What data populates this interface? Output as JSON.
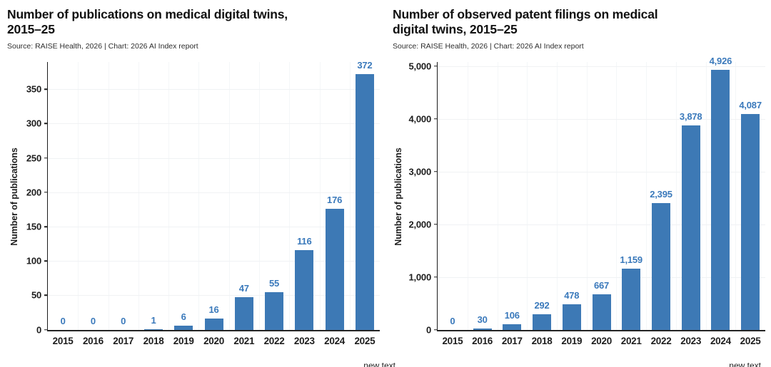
{
  "colors": {
    "bar": "#3D79B5",
    "value_label": "#3A79BB",
    "axis": "#1c1c1c",
    "tick_label": "#1d1d1d",
    "title": "#111111",
    "grid": "#f0f2f4",
    "background": "#ffffff"
  },
  "chart_data": [
    {
      "type": "bar",
      "title": "Number of publications on medical digital twins, 2015–25",
      "title_lines": [
        "Number of publications on medical digital twins,",
        "2015–25"
      ],
      "source": "Source: RAISE Health, 2026 | Chart: 2026 AI Index report",
      "ylabel": "Number of publications",
      "xlabel": "",
      "categories": [
        "2015",
        "2016",
        "2017",
        "2018",
        "2019",
        "2020",
        "2021",
        "2022",
        "2023",
        "2024",
        "2025"
      ],
      "values": [
        0,
        0,
        0,
        1,
        6,
        16,
        47,
        55,
        116,
        176,
        372
      ],
      "value_labels": [
        "0",
        "0",
        "0",
        "1",
        "6",
        "16",
        "47",
        "55",
        "116",
        "176",
        "372"
      ],
      "yticks": [
        0,
        50,
        100,
        150,
        200,
        250,
        300,
        350
      ],
      "ytick_labels": [
        "0",
        "50",
        "100",
        "150",
        "200",
        "250",
        "300",
        "350"
      ],
      "ylim": [
        0,
        390
      ],
      "grid": true,
      "legend": "none",
      "bar_color": "#3D79B5",
      "value_label_color": "#3A79BB",
      "cutoff_text": "new text"
    },
    {
      "type": "bar",
      "title": "Number of observed patent filings on medical digital twins, 2015–25",
      "title_lines": [
        "Number of observed patent filings on medical",
        "digital twins, 2015–25"
      ],
      "source": "Source: RAISE Health, 2026 | Chart: 2026 AI Index report",
      "ylabel": "Number of publications",
      "xlabel": "",
      "categories": [
        "2015",
        "2016",
        "2017",
        "2018",
        "2019",
        "2020",
        "2021",
        "2022",
        "2023",
        "2024",
        "2025"
      ],
      "values": [
        0,
        30,
        106,
        292,
        478,
        667,
        1159,
        2395,
        3878,
        4926,
        4087
      ],
      "value_labels": [
        "0",
        "30",
        "106",
        "292",
        "478",
        "667",
        "1,159",
        "2,395",
        "3,878",
        "4,926",
        "4,087"
      ],
      "yticks": [
        0,
        1000,
        2000,
        3000,
        4000,
        5000
      ],
      "ytick_labels": [
        "0",
        "1,000",
        "2,000",
        "3,000",
        "4,000",
        "5,000"
      ],
      "ylim": [
        0,
        5080
      ],
      "grid": true,
      "legend": "none",
      "bar_color": "#3D79B5",
      "value_label_color": "#3A79BB",
      "cutoff_text": "new text"
    }
  ]
}
